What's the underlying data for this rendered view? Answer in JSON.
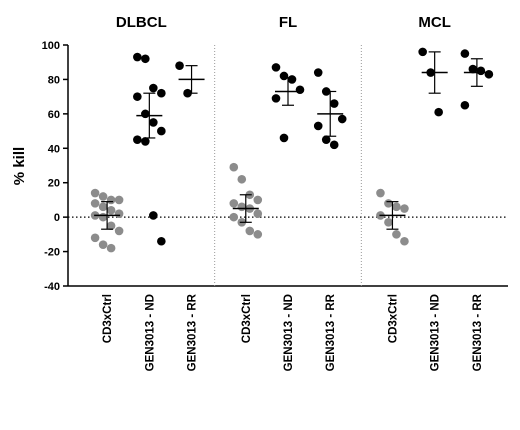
{
  "chart_data": {
    "type": "dot",
    "ylabel": "% kill",
    "ylim": [
      -40,
      100
    ],
    "yticks": [
      -40,
      -20,
      0,
      20,
      40,
      60,
      80,
      100
    ],
    "reference_line": 0,
    "panels": [
      {
        "title": "DLBCL",
        "categories": [
          "CD3xCtrl",
          "GEN3013 - ND",
          "GEN3013 - RR"
        ],
        "colors": [
          "#8c8c8c",
          "#000000",
          "#000000"
        ],
        "points": [
          [
            14,
            12,
            10,
            10,
            8,
            6,
            4,
            2,
            1,
            0,
            -5,
            -8,
            -12,
            -16,
            -18
          ],
          [
            93,
            92,
            75,
            72,
            70,
            60,
            55,
            50,
            45,
            44,
            1,
            -14
          ],
          [
            88,
            72
          ]
        ],
        "mean": [
          1,
          59,
          80
        ],
        "error": [
          8,
          13,
          8
        ]
      },
      {
        "title": "FL",
        "categories": [
          "CD3xCtrl",
          "GEN3013 - ND",
          "GEN3013 - RR"
        ],
        "colors": [
          "#8c8c8c",
          "#000000",
          "#000000"
        ],
        "points": [
          [
            29,
            22,
            13,
            10,
            8,
            6,
            5,
            2,
            0,
            -3,
            -8,
            -10
          ],
          [
            87,
            82,
            80,
            74,
            69,
            46
          ],
          [
            84,
            73,
            66,
            57,
            53,
            45,
            42
          ]
        ],
        "mean": [
          5,
          73,
          60
        ],
        "error": [
          8,
          8,
          13
        ]
      },
      {
        "title": "MCL",
        "categories": [
          "CD3xCtrl",
          "GEN3013 - ND",
          "GEN3013 - RR"
        ],
        "colors": [
          "#8c8c8c",
          "#000000",
          "#000000"
        ],
        "points": [
          [
            14,
            8,
            6,
            5,
            1,
            -3,
            -10,
            -14
          ],
          [
            96,
            84,
            61
          ],
          [
            95,
            86,
            85,
            83,
            65
          ]
        ],
        "mean": [
          1,
          84,
          84
        ],
        "error": [
          8,
          12,
          8
        ]
      }
    ]
  }
}
